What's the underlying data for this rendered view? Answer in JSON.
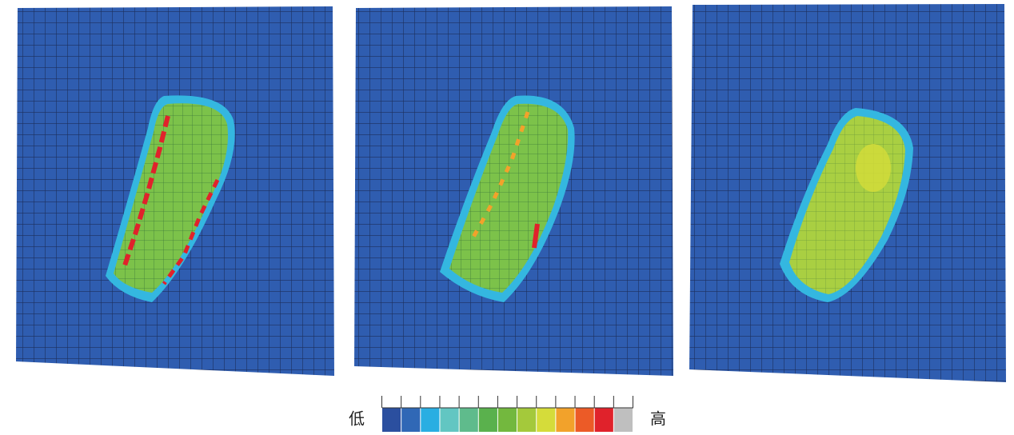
{
  "legend": {
    "low": "低",
    "high": "高",
    "colors": [
      "#2b4f9f",
      "#3068b6",
      "#29aee2",
      "#62c6c2",
      "#5fbb8c",
      "#5ab14d",
      "#73b83e",
      "#a4c93b",
      "#d5dc3a",
      "#f2a22b",
      "#ec5b27",
      "#e0222b",
      "#bfbfbf"
    ]
  }
}
